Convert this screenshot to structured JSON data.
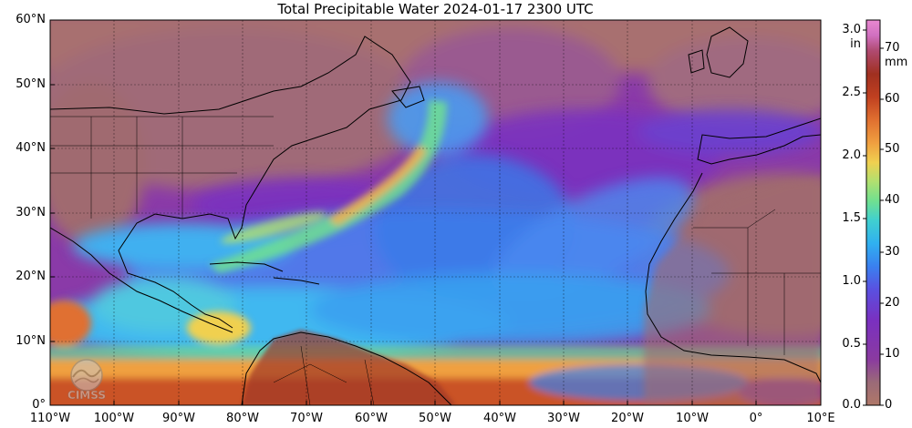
{
  "title": "Total Precipitable Water  2024-01-17 2300 UTC",
  "lat_labels": [
    "60°N",
    "50°N",
    "40°N",
    "30°N",
    "20°N",
    "10°N",
    "0°"
  ],
  "lon_labels": [
    "110°W",
    "100°W",
    "90°W",
    "80°W",
    "70°W",
    "60°W",
    "50°W",
    "40°W",
    "30°W",
    "20°W",
    "10°W",
    "0°",
    "10°E"
  ],
  "colorbar": {
    "unit_in": "in",
    "unit_mm": "mm",
    "in_ticks": [
      "3.0",
      "2.5",
      "2.0",
      "1.5",
      "1.0",
      "0.5",
      "0.0"
    ],
    "mm_ticks": [
      "70",
      "60",
      "50",
      "40",
      "30",
      "20",
      "10",
      "0"
    ],
    "colors": [
      "#b07868",
      "#9a6a78",
      "#8a3aa0",
      "#7a30c0",
      "#5a50e0",
      "#3a80f0",
      "#30b0f0",
      "#40d0d0",
      "#70e090",
      "#b0e070",
      "#f0d050",
      "#f0a040",
      "#e07030",
      "#c04020",
      "#a03020",
      "#b04a70",
      "#d070c0",
      "#e888d0"
    ]
  },
  "logo_text": "CIMSS",
  "colors": {
    "ocean_dry": "#8a3aa8",
    "land_dry": "#a87070",
    "moist_band": "#40b0f0",
    "tropical": "#f0a040"
  }
}
